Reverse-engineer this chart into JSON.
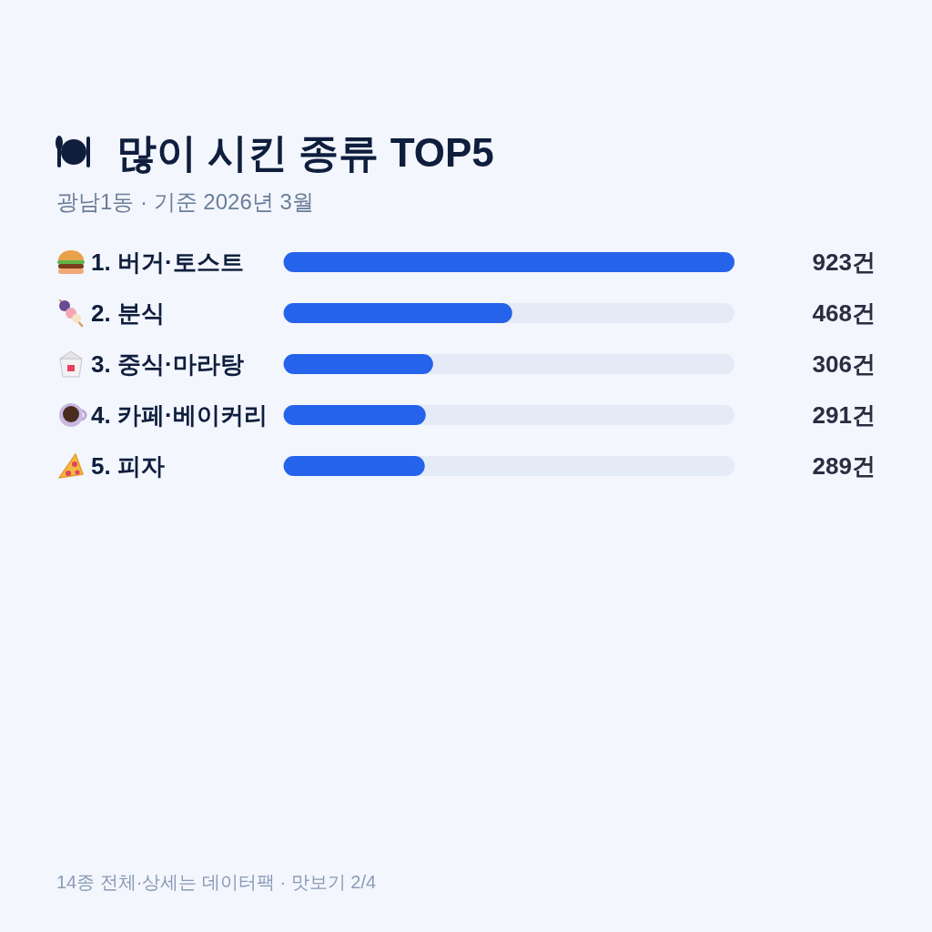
{
  "chart_data": {
    "type": "bar",
    "orientation": "horizontal",
    "title": "많이 시킨 종류 TOP5",
    "subtitle": "광남1동 · 기준 2026년 3월",
    "categories": [
      "1. 버거·토스트",
      "2. 분식",
      "3. 중식·마라탕",
      "4. 카페·베이커리",
      "5. 피자"
    ],
    "values": [
      923,
      468,
      306,
      291,
      289
    ],
    "color": "#2563eb",
    "value_labels": [
      "923건",
      "468건",
      "306건",
      "291건",
      "289건"
    ],
    "annotations": [
      "14종 전체·상세는 데이터팩 · 맛보기 2/4"
    ]
  }
}
